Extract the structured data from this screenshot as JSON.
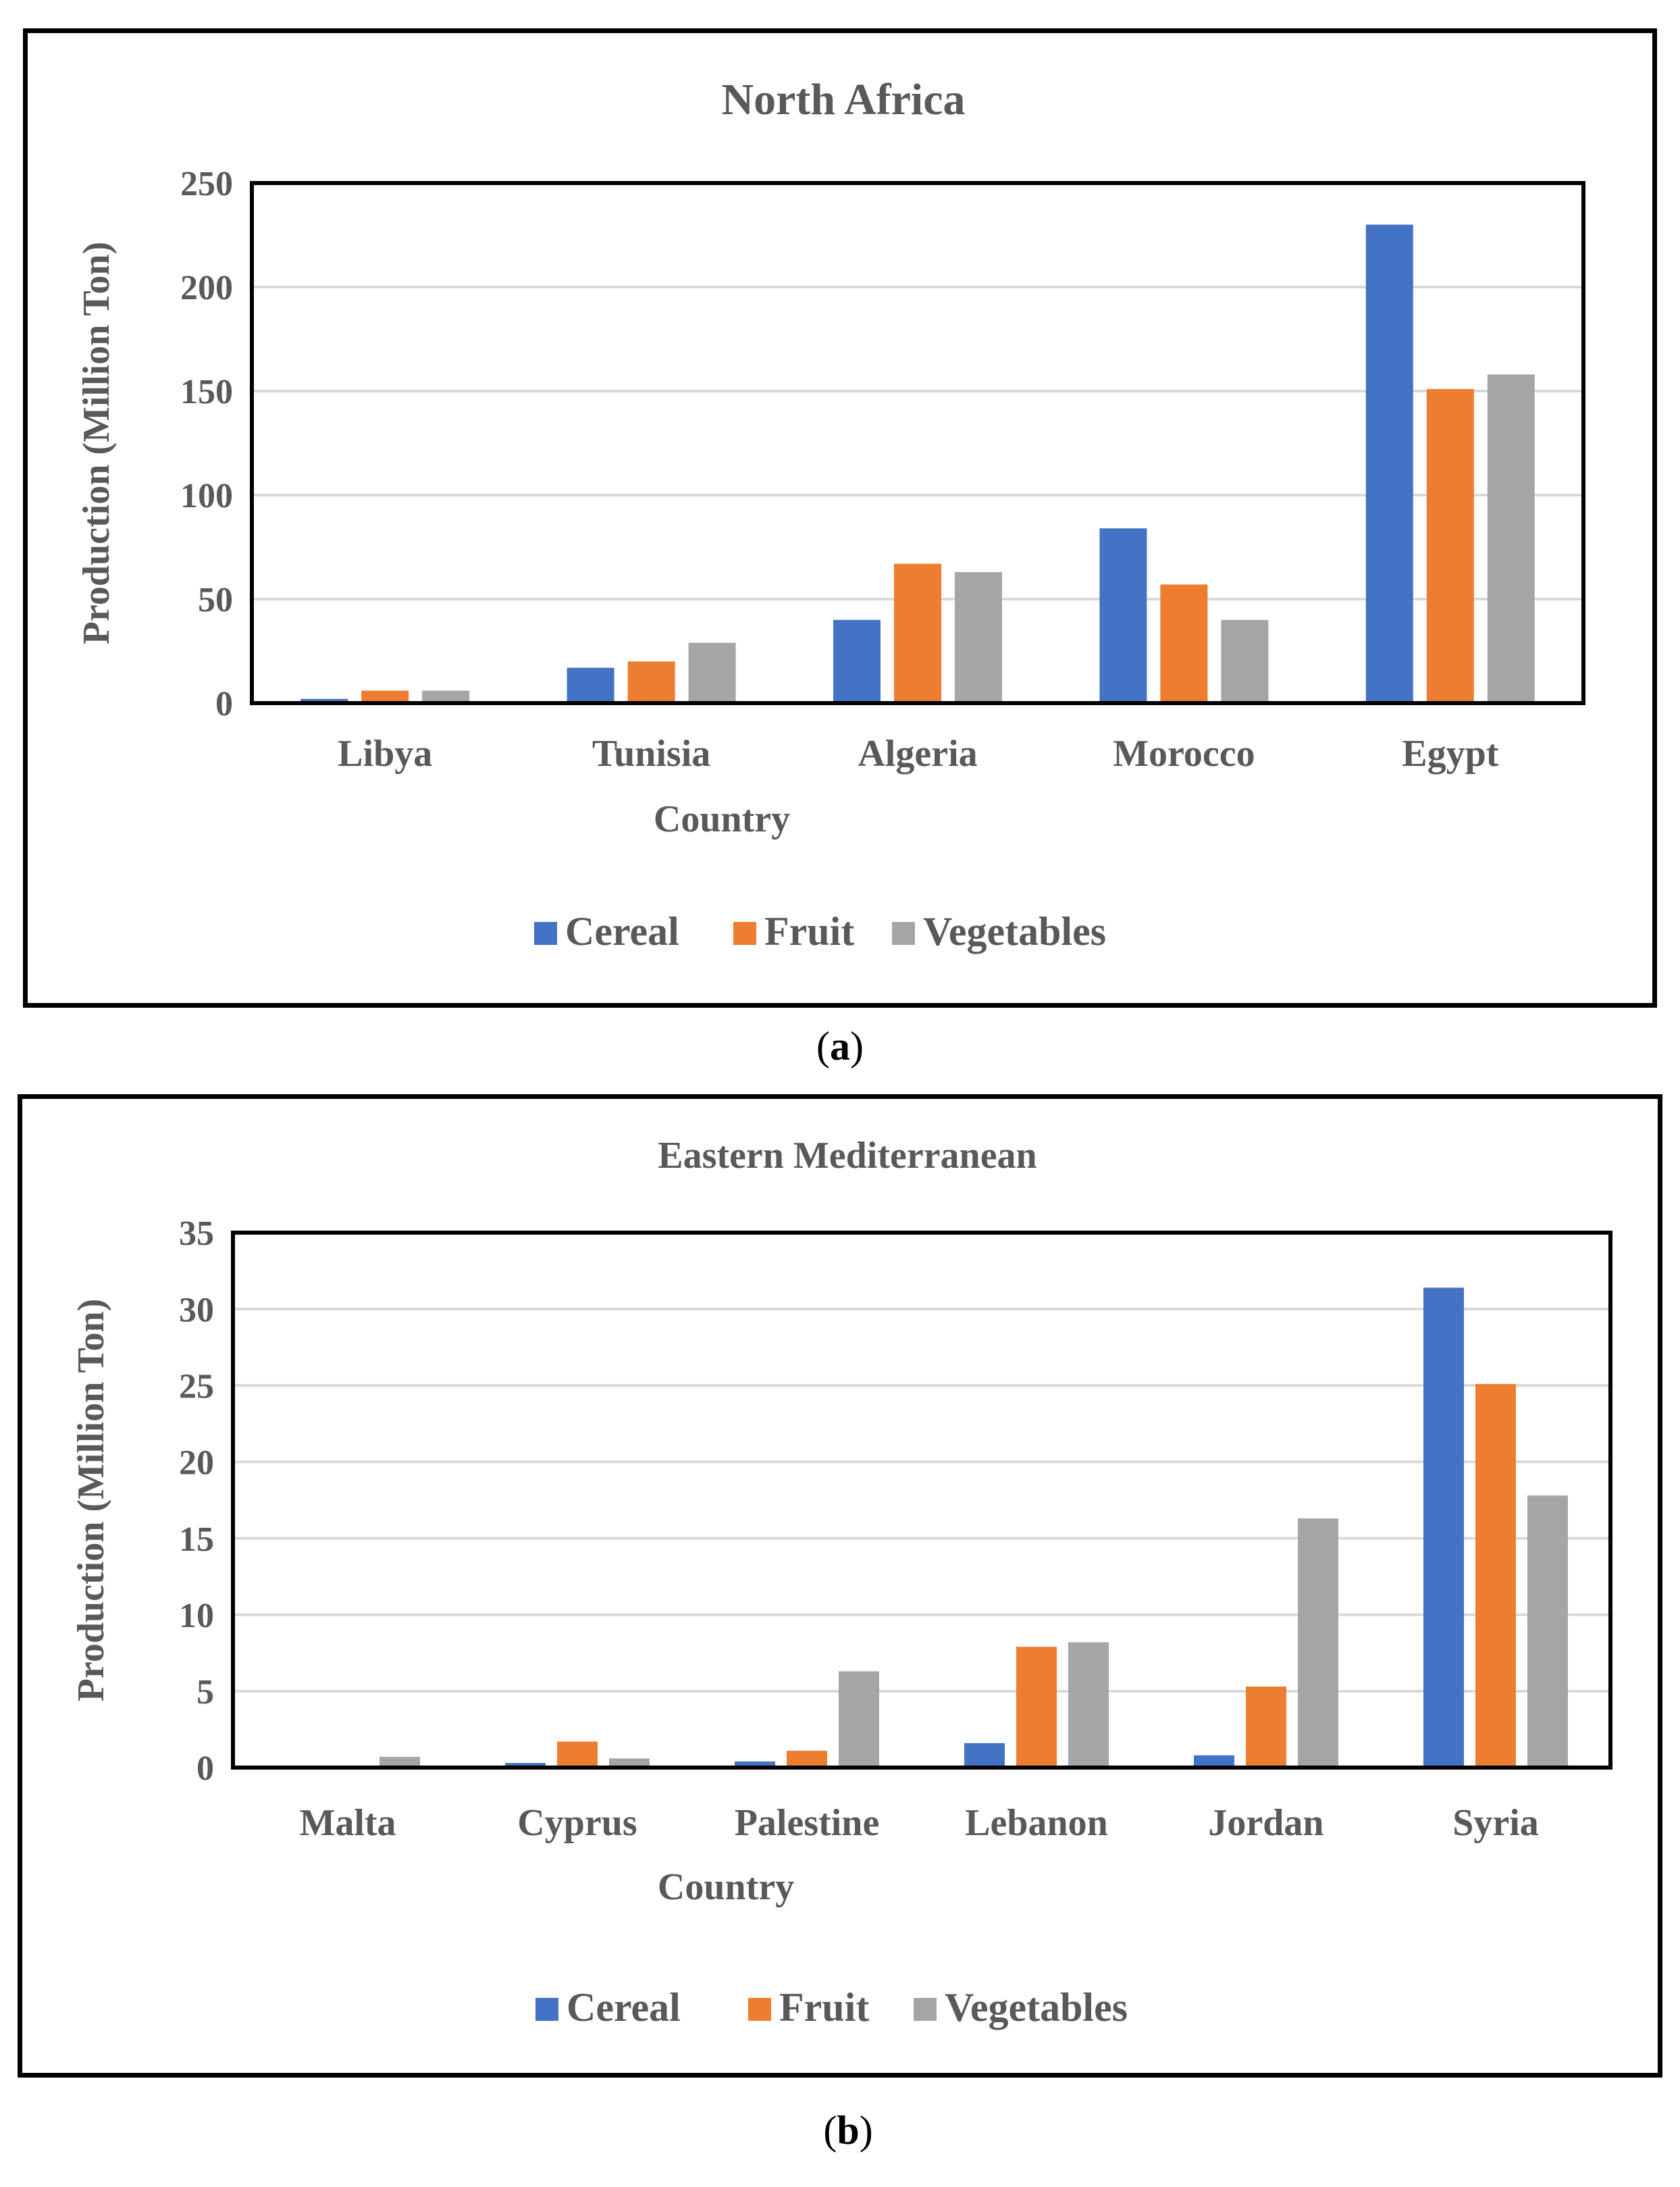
{
  "captions": {
    "a": "a",
    "b": "b"
  },
  "colors": {
    "cereal": "#4472C4",
    "fruit": "#ED7D31",
    "vegetables": "#A5A5A5",
    "text": "#595959",
    "grid": "#D9D9D9",
    "frame": "#000000"
  },
  "chart_data": [
    {
      "id": "a",
      "type": "bar",
      "title": "North Africa",
      "xlabel": "Country",
      "ylabel": "Production (Million Ton)",
      "ylim": [
        0,
        250
      ],
      "yticks": [
        "0",
        "50",
        "100",
        "150",
        "200",
        "250"
      ],
      "categories": [
        "Libya",
        "Tunisia",
        "Algeria",
        "Morocco",
        "Egypt"
      ],
      "series": [
        {
          "name": "Cereal",
          "key": "cereal",
          "values": [
            2,
            17,
            40,
            84,
            230
          ]
        },
        {
          "name": "Fruit",
          "key": "fruit",
          "values": [
            6,
            20,
            67,
            57,
            151
          ]
        },
        {
          "name": "Vegetables",
          "key": "vegetables",
          "values": [
            6,
            29,
            63,
            40,
            158
          ]
        }
      ],
      "legend": "bottom"
    },
    {
      "id": "b",
      "type": "bar",
      "title": "Eastern Mediterranean",
      "xlabel": "Country",
      "ylabel": "Production (Million Ton)",
      "ylim": [
        0,
        35
      ],
      "yticks": [
        "0",
        "5",
        "10",
        "15",
        "20",
        "25",
        "30",
        "35"
      ],
      "categories": [
        "Malta",
        "Cyprus",
        "Palestine",
        "Lebanon",
        "Jordan",
        "Syria"
      ],
      "series": [
        {
          "name": "Cereal",
          "key": "cereal",
          "values": [
            0,
            0.3,
            0.4,
            1.6,
            0.8,
            31.4
          ]
        },
        {
          "name": "Fruit",
          "key": "fruit",
          "values": [
            0,
            1.7,
            1.1,
            7.9,
            5.3,
            25.1
          ]
        },
        {
          "name": "Vegetables",
          "key": "vegetables",
          "values": [
            0.7,
            0.6,
            6.3,
            8.2,
            16.3,
            17.8
          ]
        }
      ],
      "legend": "bottom"
    }
  ]
}
